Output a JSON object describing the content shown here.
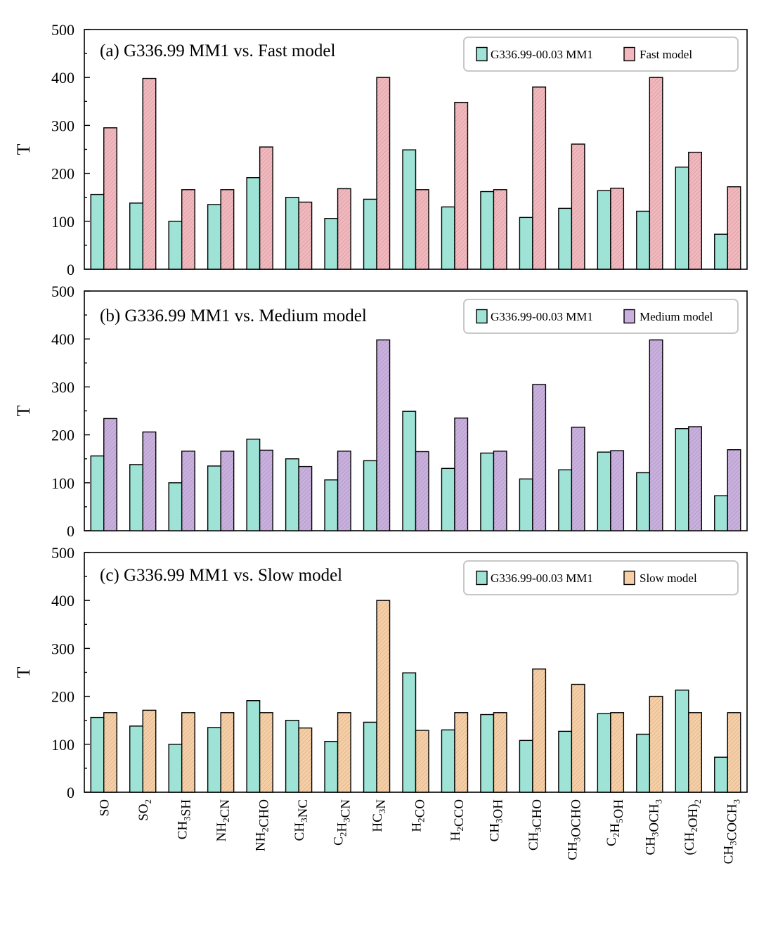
{
  "chart_data": [
    {
      "type": "bar",
      "panel_label": "(a) G336.99 MM1 vs. Fast model",
      "ylabel": "T",
      "ylim": [
        0,
        500
      ],
      "yticks": [
        "0",
        "100",
        "200",
        "300",
        "400",
        "500"
      ],
      "categories": [
        "SO",
        "SO2",
        "CH3SH",
        "NH2CN",
        "NH2CHO",
        "CH3NC",
        "C2H3CN",
        "HC3N",
        "H2CO",
        "H2CCO",
        "CH3OH",
        "CH3CHO",
        "CH3OCHO",
        "C2H5OH",
        "CH3OCH3",
        "(CH2OH)2",
        "CH3COCH3"
      ],
      "series": [
        {
          "name": "G336.99-00.03 MM1",
          "color": "#9ee3d6",
          "values": [
            156,
            138,
            100,
            135,
            191,
            150,
            106,
            146,
            249,
            130,
            162,
            108,
            127,
            164,
            121,
            213,
            73
          ]
        },
        {
          "name": "Fast model",
          "color": "#f2b8bd",
          "values": [
            295,
            398,
            166,
            166,
            255,
            140,
            168,
            400,
            166,
            348,
            166,
            380,
            261,
            169,
            400,
            244,
            172
          ]
        }
      ]
    },
    {
      "type": "bar",
      "panel_label": "(b) G336.99 MM1 vs. Medium model",
      "ylabel": "T",
      "ylim": [
        0,
        500
      ],
      "yticks": [
        "0",
        "100",
        "200",
        "300",
        "400",
        "500"
      ],
      "categories": [
        "SO",
        "SO2",
        "CH3SH",
        "NH2CN",
        "NH2CHO",
        "CH3NC",
        "C2H3CN",
        "HC3N",
        "H2CO",
        "H2CCO",
        "CH3OH",
        "CH3CHO",
        "CH3OCHO",
        "C2H5OH",
        "CH3OCH3",
        "(CH2OH)2",
        "CH3COCH3"
      ],
      "series": [
        {
          "name": "G336.99-00.03 MM1",
          "color": "#9ee3d6",
          "values": [
            156,
            138,
            100,
            135,
            191,
            150,
            106,
            146,
            249,
            130,
            162,
            108,
            127,
            164,
            121,
            213,
            73
          ]
        },
        {
          "name": "Medium model",
          "color": "#c9b0df",
          "values": [
            234,
            206,
            166,
            166,
            168,
            134,
            166,
            398,
            165,
            235,
            166,
            305,
            216,
            167,
            398,
            217,
            169
          ]
        }
      ]
    },
    {
      "type": "bar",
      "panel_label": "(c) G336.99 MM1 vs. Slow model",
      "ylabel": "T",
      "ylim": [
        0,
        500
      ],
      "yticks": [
        "0",
        "100",
        "200",
        "300",
        "400",
        "500"
      ],
      "categories": [
        "SO",
        "SO2",
        "CH3SH",
        "NH2CN",
        "NH2CHO",
        "CH3NC",
        "C2H3CN",
        "HC3N",
        "H2CO",
        "H2CCO",
        "CH3OH",
        "CH3CHO",
        "CH3OCHO",
        "C2H5OH",
        "CH3OCH3",
        "(CH2OH)2",
        "CH3COCH3"
      ],
      "series": [
        {
          "name": "G336.99-00.03 MM1",
          "color": "#9ee3d6",
          "values": [
            156,
            138,
            100,
            135,
            191,
            150,
            106,
            146,
            249,
            130,
            162,
            108,
            127,
            164,
            121,
            213,
            73
          ]
        },
        {
          "name": "Slow model",
          "color": "#f7cfa6",
          "values": [
            166,
            171,
            166,
            166,
            166,
            134,
            166,
            400,
            129,
            166,
            166,
            257,
            225,
            166,
            200,
            166,
            166
          ]
        }
      ]
    }
  ]
}
